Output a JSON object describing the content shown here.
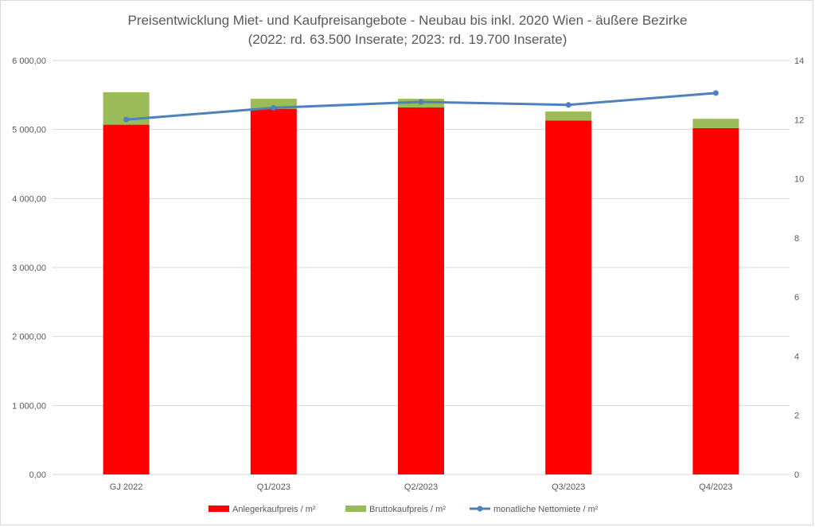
{
  "chart_data": {
    "type": "bar",
    "title_line1": "Preisentwicklung Miet- und Kaufpreisangebote - Neubau bis inkl. 2020 Wien - äußere Bezirke",
    "title_line2": "(2022: rd. 63.500 Inserate; 2023: rd. 19.700 Inserate)",
    "categories": [
      "GJ 2022",
      "Q1/2023",
      "Q2/2023",
      "Q3/2023",
      "Q4/2023"
    ],
    "stacked": true,
    "series": [
      {
        "name": "Anlegerkaufpreis / m²",
        "kind": "bar",
        "axis": "left",
        "color": "#ff0000",
        "values": [
          5070,
          5300,
          5320,
          5130,
          5020
        ]
      },
      {
        "name": "Bruttokaufpreis / m²",
        "kind": "bar",
        "axis": "left",
        "color": "#9bbb59",
        "values": [
          470,
          145,
          125,
          130,
          135
        ]
      },
      {
        "name": "monatliche Nettomiete / m²",
        "kind": "line",
        "axis": "right",
        "color": "#4f81bd",
        "values": [
          12.0,
          12.4,
          12.6,
          12.5,
          12.9
        ]
      }
    ],
    "y_left": {
      "min": 0,
      "max": 6000,
      "ticks": [
        "0,00",
        "1 000,00",
        "2 000,00",
        "3 000,00",
        "4 000,00",
        "5 000,00",
        "6 000,00"
      ]
    },
    "y_right": {
      "min": 0,
      "max": 14,
      "ticks": [
        "0",
        "2",
        "4",
        "6",
        "8",
        "10",
        "12",
        "14"
      ]
    },
    "grid": true,
    "legend_position": "bottom"
  }
}
